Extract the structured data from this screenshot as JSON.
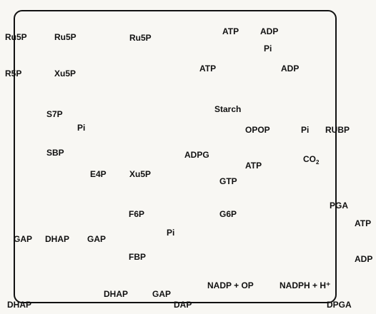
{
  "labels": {
    "ru5p_1": "Ru5P",
    "ru5p_2": "Ru5P",
    "ru5p_3": "Ru5P",
    "atp_1": "ATP",
    "adp_1": "ADP",
    "pi_1": "Pi",
    "r5p": "R5P",
    "xu5p_1": "Xu5P",
    "atp_2": "ATP",
    "adp_2": "ADP",
    "starch": "Starch",
    "s7p": "S7P",
    "pi_2": "Pi",
    "opop": "OPOP",
    "pi_3": "Pi",
    "rubp": "RUBP",
    "sbp": "SBP",
    "adpg": "ADPG",
    "co2_main": "CO",
    "co2_sub": "2",
    "atp_3": "ATP",
    "e4p": "E4P",
    "xu5p_2": "Xu5P",
    "gtp": "GTP",
    "pga": "PGA",
    "f6p": "F6P",
    "g6p": "G6P",
    "atp_4": "ATP",
    "pi_4": "Pi",
    "gap_1": "GAP",
    "dhap_1": "DHAP",
    "gap_2": "GAP",
    "adp_3": "ADP",
    "fbp": "FBP",
    "nadp_op": "NADP + OP",
    "nadph": "NADPH + H⁺",
    "dhap_2": "DHAP",
    "gap_3": "GAP",
    "dhap_3": "DHAP",
    "dap": "DAP",
    "dpga": "DPGA"
  }
}
